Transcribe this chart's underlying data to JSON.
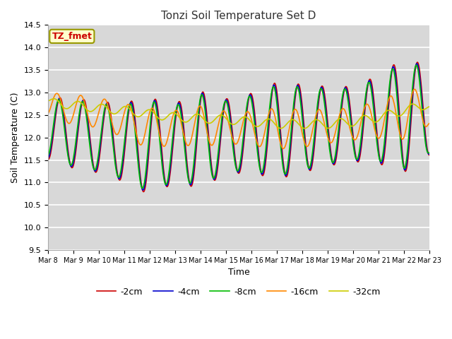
{
  "title": "Tonzi Soil Temperature Set D",
  "xlabel": "Time",
  "ylabel": "Soil Temperature (C)",
  "annotation": "TZ_fmet",
  "ylim": [
    9.5,
    14.5
  ],
  "bg_color": "#d8d8d8",
  "fig_color": "#ffffff",
  "series_colors": {
    "-2cm": "#cc0000",
    "-4cm": "#0000cc",
    "-8cm": "#00bb00",
    "-16cm": "#ff8800",
    "-32cm": "#cccc00"
  },
  "x_ticks": [
    "Mar 8",
    "Mar 9",
    "Mar 10",
    "Mar 11",
    "Mar 12",
    "Mar 13",
    "Mar 14",
    "Mar 15",
    "Mar 16",
    "Mar 17",
    "Mar 18",
    "Mar 19",
    "Mar 20",
    "Mar 21",
    "Mar 22",
    "Mar 23"
  ],
  "linewidth": 1.2,
  "figsize": [
    6.4,
    4.8
  ],
  "dpi": 100
}
